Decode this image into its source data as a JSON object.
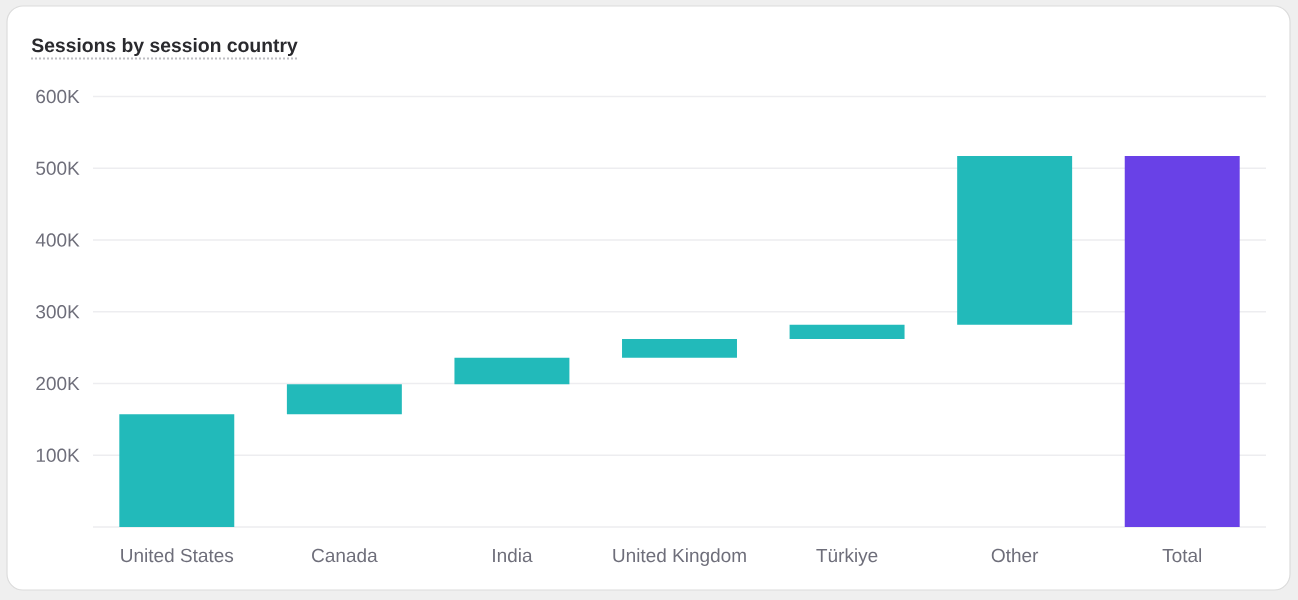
{
  "chart_data": {
    "type": "bar",
    "title": "Sessions by session country",
    "categories": [
      "United States",
      "Canada",
      "India",
      "United Kingdom",
      "Türkiye",
      "Other",
      "Total"
    ],
    "values": [
      157000,
      42000,
      37000,
      26000,
      20000,
      235000,
      517000
    ],
    "base": [
      0,
      157000,
      199000,
      236000,
      262000,
      282000,
      0
    ],
    "colors": [
      "#22baba",
      "#22baba",
      "#22baba",
      "#22baba",
      "#22baba",
      "#22baba",
      "#6941e7"
    ],
    "ylim": [
      0,
      600000
    ],
    "yticks": [
      {
        "value": 0,
        "label": null
      },
      {
        "value": 100000,
        "label": "100K"
      },
      {
        "value": 200000,
        "label": "200K"
      },
      {
        "value": 300000,
        "label": "300K"
      },
      {
        "value": 400000,
        "label": "400K"
      },
      {
        "value": 500000,
        "label": "500K"
      },
      {
        "value": 600000,
        "label": "600K"
      }
    ],
    "grid": "y"
  }
}
